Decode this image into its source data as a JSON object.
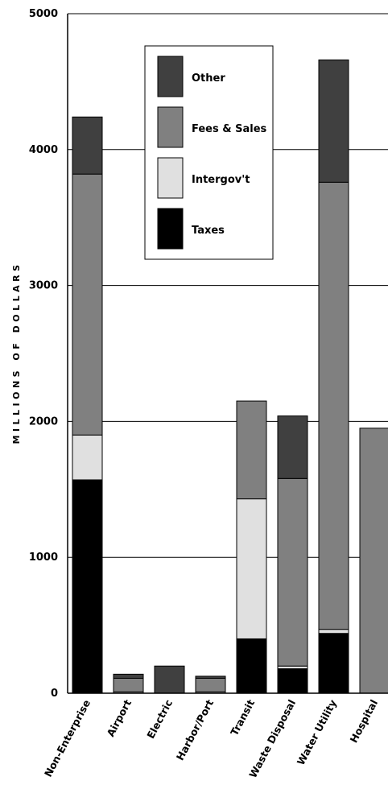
{
  "chart_data": {
    "type": "bar",
    "stacked": true,
    "title": "",
    "xlabel": "",
    "ylabel": "MILLIONS OF DOLLARS",
    "ylim": [
      0,
      5000
    ],
    "yticks": [
      0,
      1000,
      2000,
      3000,
      4000,
      5000
    ],
    "ytick_labels": [
      "0",
      "1000",
      "2000",
      "3000",
      "4000",
      "5000"
    ],
    "grid": true,
    "legend_position": "top-center",
    "categories": [
      "Non-Enterprise",
      "Airport",
      "Electric",
      "Harbor/Port",
      "Transit",
      "Waste Disposal",
      "Water Utility",
      "Hospital"
    ],
    "series": [
      {
        "name": "Taxes",
        "color": "#000000",
        "values": [
          1570,
          0,
          0,
          0,
          400,
          180,
          440,
          0
        ]
      },
      {
        "name": "Intergov't",
        "color": "#e0e0e0",
        "values": [
          330,
          10,
          0,
          10,
          1030,
          20,
          30,
          0
        ]
      },
      {
        "name": "Fees & Sales",
        "color": "#808080",
        "values": [
          1920,
          100,
          0,
          100,
          720,
          1380,
          3290,
          1950
        ]
      },
      {
        "name": "Other",
        "color": "#404040",
        "values": [
          420,
          30,
          200,
          15,
          0,
          460,
          900,
          0
        ]
      }
    ],
    "legend_order": [
      "Other",
      "Fees & Sales",
      "Intergov't",
      "Taxes"
    ]
  }
}
